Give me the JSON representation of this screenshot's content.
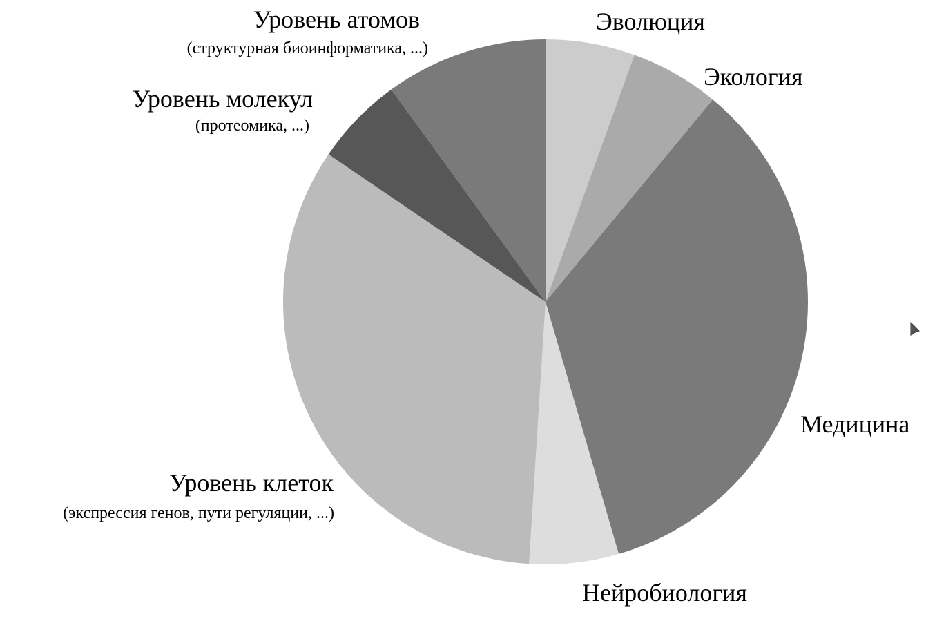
{
  "chart_data": {
    "type": "pie",
    "slices": [
      {
        "label": "Эволюция",
        "sublabel": "",
        "value": 5.5,
        "color": "#cccccc"
      },
      {
        "label": "Экология",
        "sublabel": "",
        "value": 5.5,
        "color": "#aaaaaa"
      },
      {
        "label": "Медицина",
        "sublabel": "",
        "value": 34.5,
        "color": "#7a7a7a"
      },
      {
        "label": "Нейробиология",
        "sublabel": "",
        "value": 5.5,
        "color": "#dddddd"
      },
      {
        "label": "Уровень клеток",
        "sublabel": "(экспрессия генов, пути регуляции, ...)",
        "value": 33.5,
        "color": "#bbbbbb"
      },
      {
        "label": "Уровень молекул",
        "sublabel": "(протеомика, ...)",
        "value": 5.5,
        "color": "#575757"
      },
      {
        "label": "Уровень атомов",
        "sublabel": "(структурная биоинформатика, ...)",
        "value": 10.0,
        "color": "#7a7a7a"
      }
    ],
    "start": "top",
    "direction": "clockwise",
    "legend": "none"
  }
}
